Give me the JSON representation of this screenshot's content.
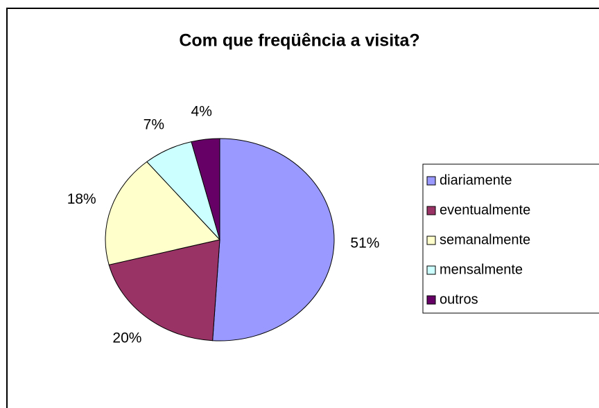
{
  "chart_data": {
    "type": "pie",
    "title": "Com que freqüência a visita?",
    "categories": [
      "diariamente",
      "eventualmente",
      "semanalmente",
      "mensalmente",
      "outros"
    ],
    "values": [
      51,
      20,
      18,
      7,
      4
    ],
    "value_labels": [
      "51%",
      "20%",
      "18%",
      "7%",
      "4%"
    ],
    "colors": [
      "#9999ff",
      "#993366",
      "#ffffcc",
      "#ccffff",
      "#660066"
    ],
    "legend": "right"
  }
}
